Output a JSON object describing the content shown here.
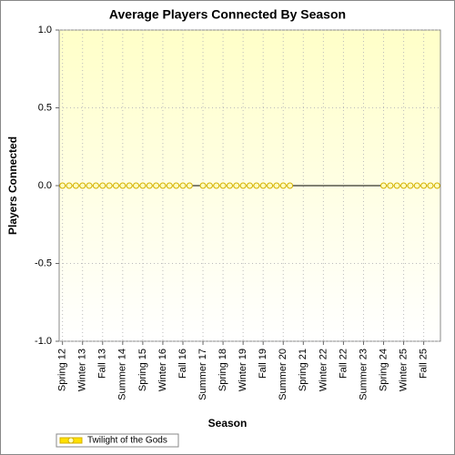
{
  "chart_data": {
    "type": "line",
    "title": "Average Players Connected By Season",
    "x_label": "Season",
    "y_label": "Players Connected",
    "categories": [
      "Spring 12",
      null,
      null,
      "Winter 13",
      null,
      null,
      "Fall 13",
      null,
      null,
      "Summer 14",
      null,
      null,
      "Spring 15",
      null,
      null,
      "Winter 16",
      null,
      null,
      "Fall 16",
      null,
      null,
      "Summer 17",
      null,
      null,
      "Spring 18",
      null,
      null,
      "Winter 19",
      null,
      null,
      "Fall 19",
      null,
      null,
      "Summer 20",
      null,
      null,
      "Spring 21",
      null,
      null,
      "Winter 22",
      null,
      null,
      "Fall 22",
      null,
      null,
      "Summer 23",
      null,
      null,
      "Spring 24",
      null,
      null,
      "Winter 25",
      null,
      null,
      "Fall 25",
      null,
      null
    ],
    "series": [
      {
        "name": "Twilight of the Gods",
        "color": "#d4b000",
        "values": [
          0,
          0,
          0,
          0,
          0,
          0,
          0,
          0,
          0,
          0,
          0,
          0,
          0,
          0,
          0,
          0,
          0,
          0,
          0,
          0,
          null,
          0,
          0,
          0,
          0,
          0,
          0,
          0,
          0,
          0,
          0,
          0,
          0,
          0,
          0,
          null,
          null,
          null,
          null,
          null,
          null,
          null,
          null,
          null,
          null,
          null,
          null,
          null,
          0,
          0,
          0,
          0,
          0,
          0,
          0,
          0,
          0
        ]
      }
    ],
    "ylim": [
      -1,
      1
    ],
    "yticks": [
      {
        "value": -1,
        "label": "-1.0"
      },
      -0.5,
      {
        "value": 0,
        "label": "0.0"
      },
      0.5,
      {
        "value": 1,
        "label": "1.0"
      }
    ],
    "grid": true,
    "legend": "bottom-left"
  }
}
